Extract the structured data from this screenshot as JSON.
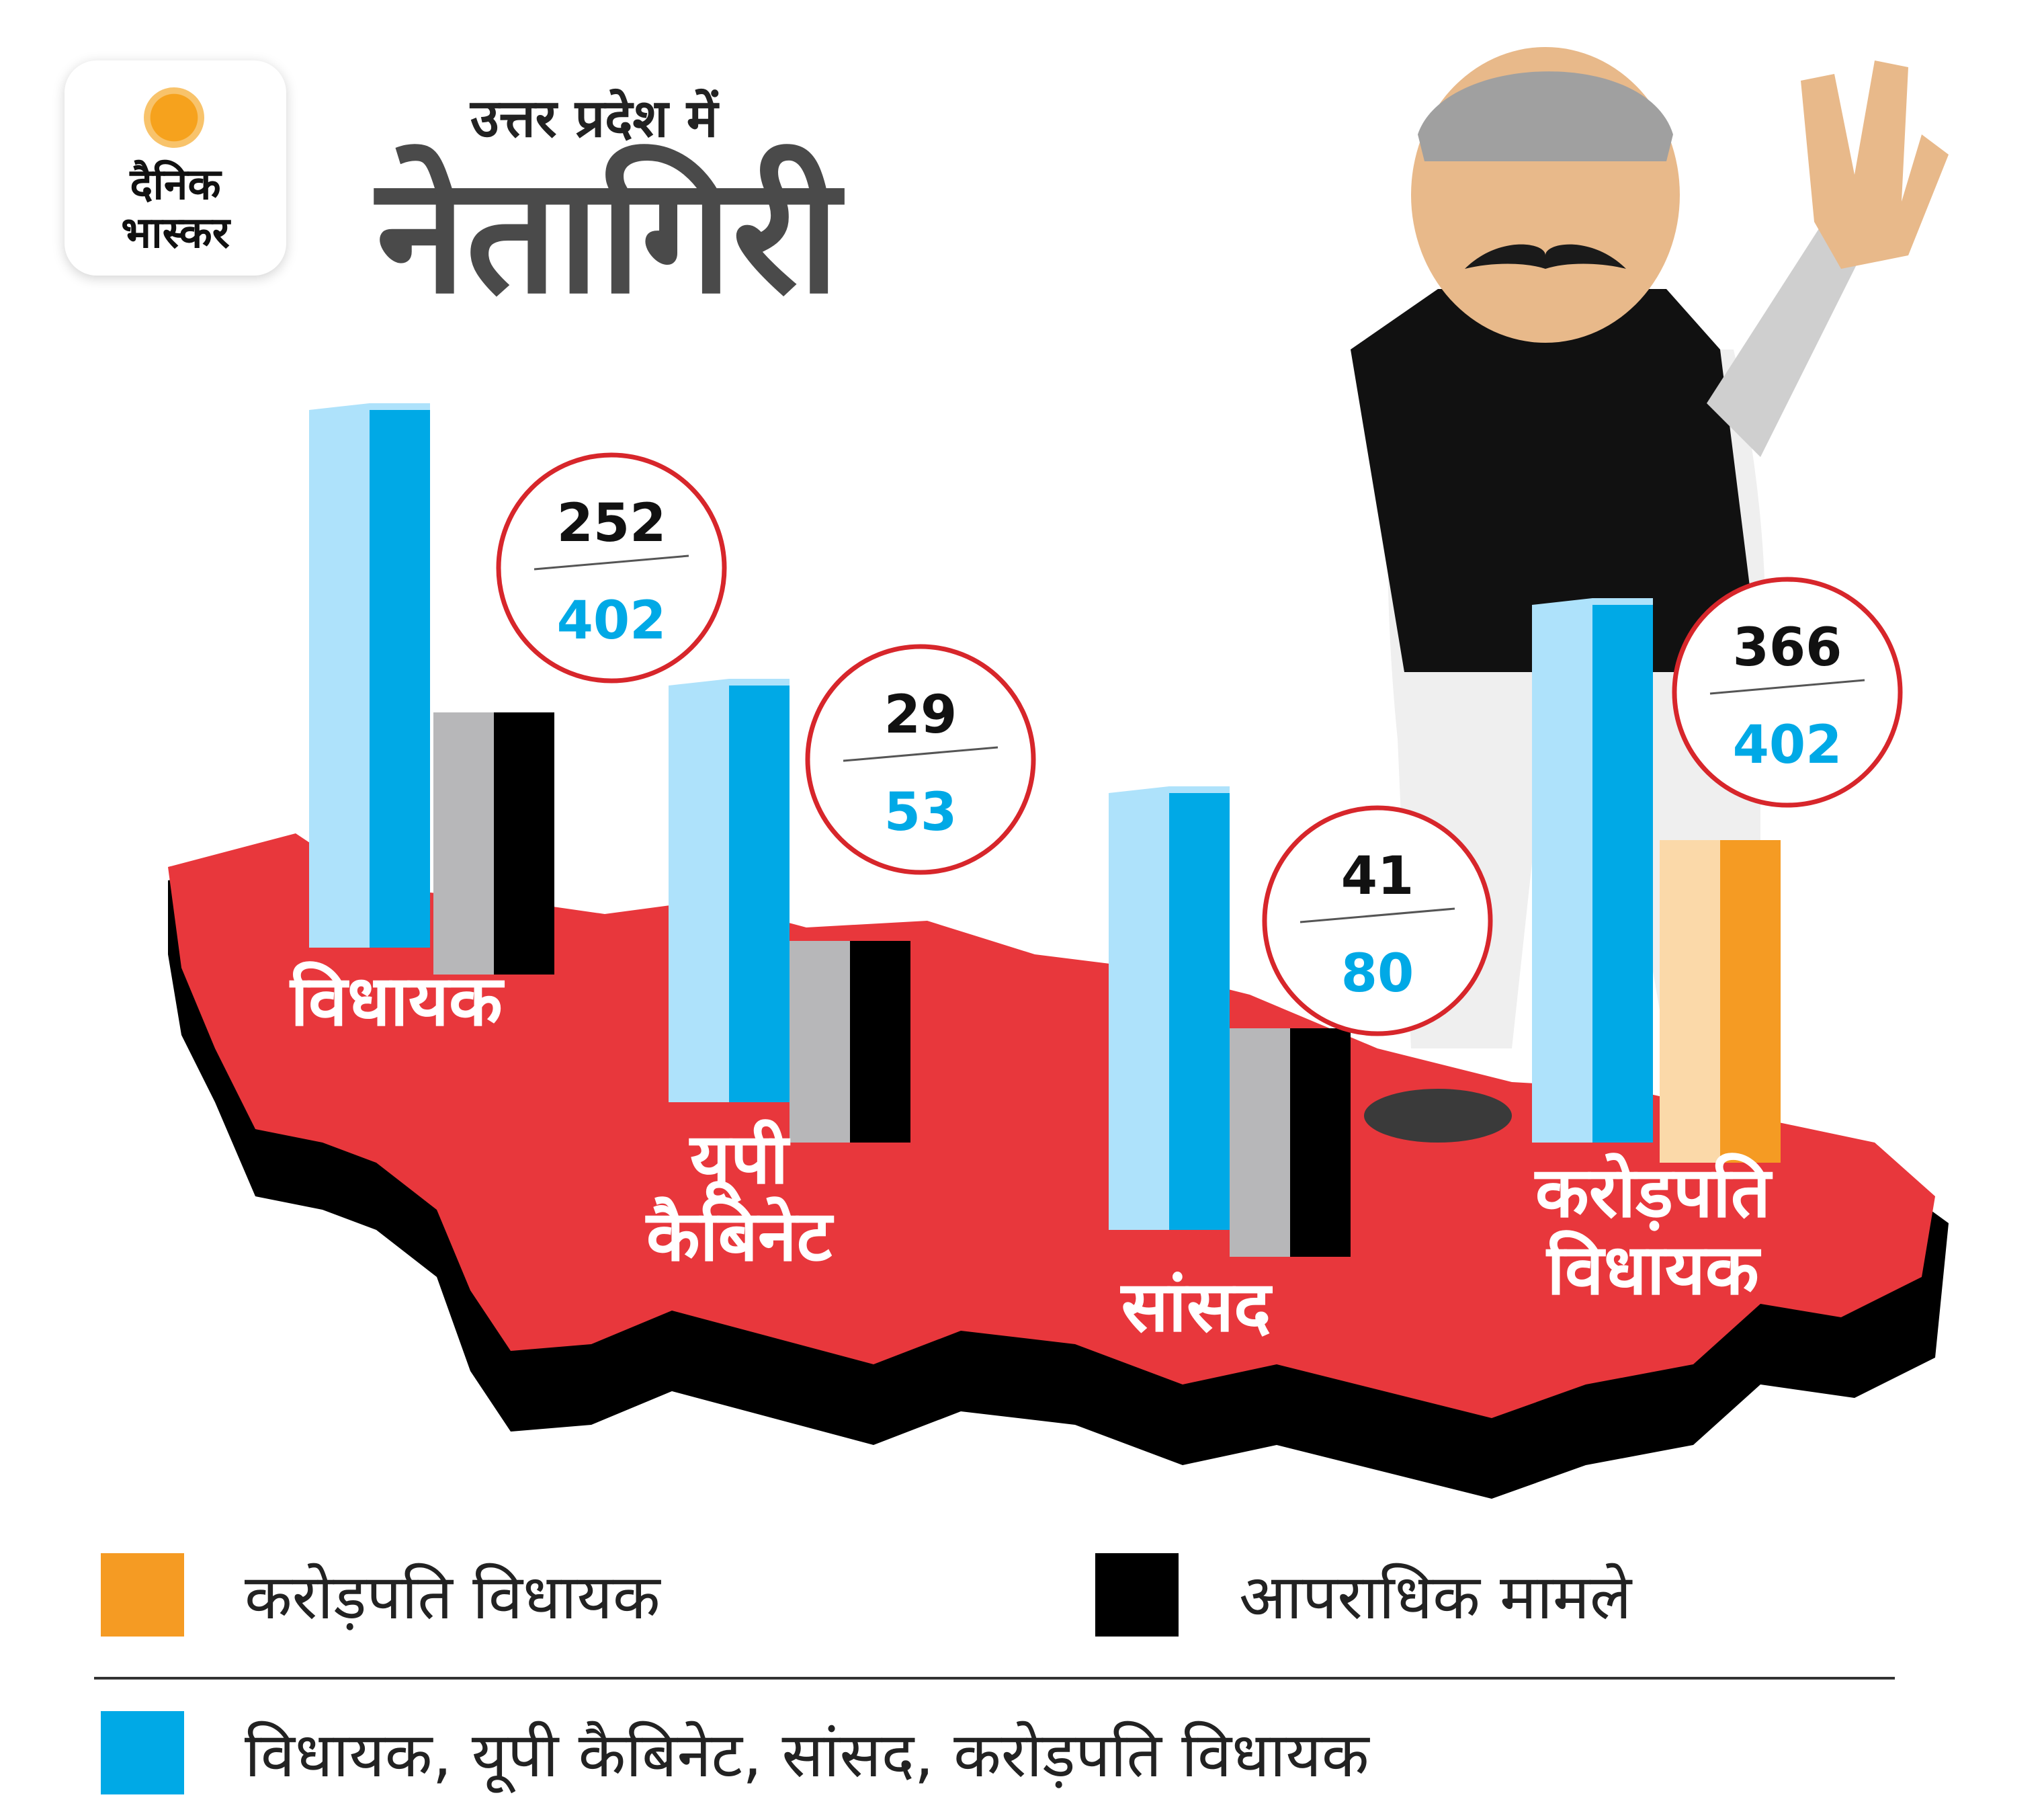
{
  "header": {
    "brand_line1": "दैनिक",
    "brand_line2": "भास्कर",
    "subtitle": "उत्तर प्रदेश में",
    "title": "नेतागिरी"
  },
  "colors": {
    "map_red": "#e8373c",
    "map_shadow": "#000000",
    "blue": "#00a9e6",
    "light_blue": "#aee2fb",
    "black": "#000000",
    "grey": "#b7b7b9",
    "orange": "#f59b23",
    "light_orange": "#fbd9a9",
    "circle_red": "#d7262b"
  },
  "chart_data": {
    "type": "bar",
    "categories": [
      "विधायक",
      "यूपी कैबिनेट",
      "सांसद",
      "करोड़पति विधायक"
    ],
    "series": [
      {
        "name": "विधायक, यूपी कैबिनेट, सांसद, करोड़पति विधायक",
        "values": [
          402,
          53,
          80,
          402
        ]
      },
      {
        "name": "आपराधिक मामले",
        "values": [
          252,
          29,
          41,
          null
        ]
      },
      {
        "name": "करोड़पति विधायक",
        "values": [
          null,
          null,
          null,
          366
        ]
      }
    ],
    "labels": [
      {
        "top": "252",
        "bottom": "402"
      },
      {
        "top": "29",
        "bottom": "53"
      },
      {
        "top": "41",
        "bottom": "80"
      },
      {
        "top": "366",
        "bottom": "402"
      }
    ],
    "title": "नेतागिरी",
    "subtitle": "उत्तर प्रदेश में"
  },
  "legend": {
    "items": [
      {
        "label": "करोड़पति विधायक",
        "color": "#f59b23"
      },
      {
        "label": "आपराधिक मामले",
        "color": "#000000"
      },
      {
        "label": "विधायक, यूपी कैबिनेट, सांसद, करोड़पति विधायक",
        "color": "#00a9e6"
      }
    ]
  }
}
